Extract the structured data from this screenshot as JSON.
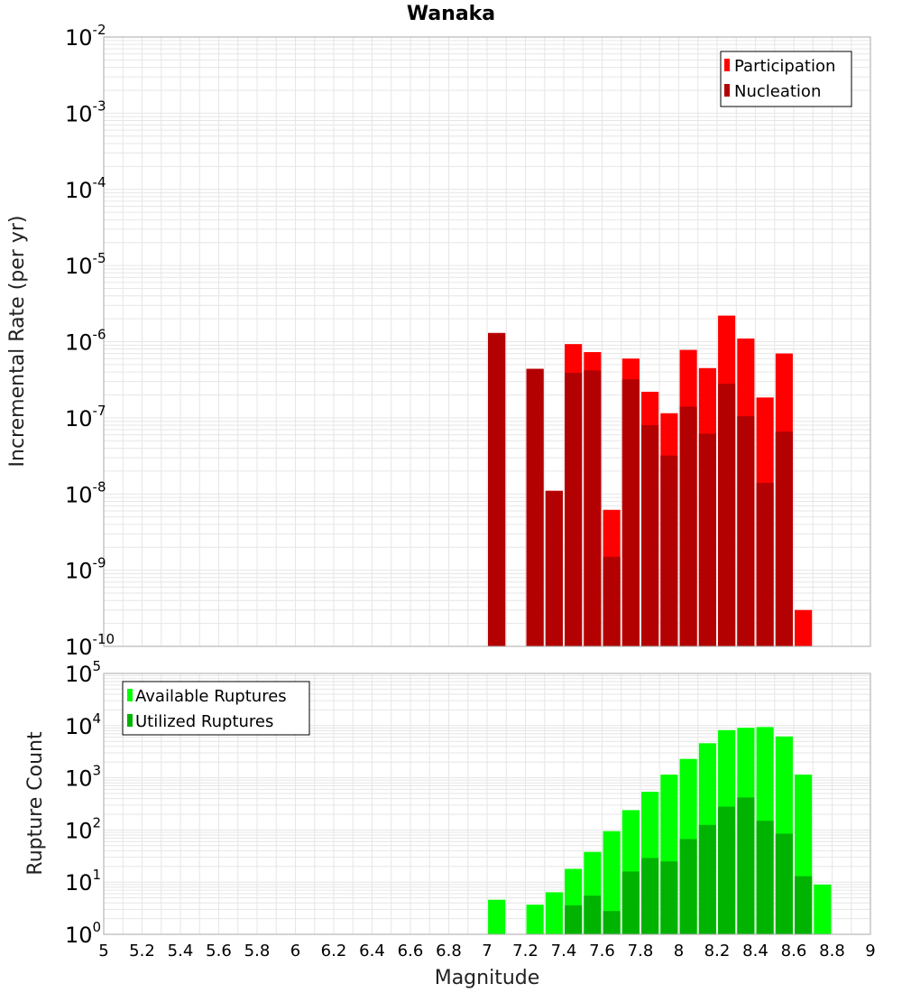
{
  "chart_data": [
    {
      "type": "bar",
      "title": "Wanaka",
      "xlabel": "Magnitude",
      "ylabel": "Incremental Rate (per yr)",
      "xlim": [
        5,
        9
      ],
      "ylim": [
        1e-10,
        0.01
      ],
      "yscale": "log",
      "grid": true,
      "legend_position": "top-right",
      "x": [
        7.05,
        7.15,
        7.25,
        7.35,
        7.45,
        7.55,
        7.65,
        7.75,
        7.85,
        7.95,
        8.05,
        8.15,
        8.25,
        8.35,
        8.45,
        8.55,
        8.65
      ],
      "series": [
        {
          "name": "Participation",
          "color": "#ff0000",
          "values": [
            1.3e-06,
            null,
            4.4e-07,
            1.1e-08,
            9.3e-07,
            7.3e-07,
            6.2e-09,
            6e-07,
            2.2e-07,
            1.15e-07,
            7.8e-07,
            4.5e-07,
            2.2e-06,
            1.1e-06,
            1.85e-07,
            7e-07,
            3e-10
          ]
        },
        {
          "name": "Nucleation",
          "color": "#b30000",
          "values": [
            1.3e-06,
            null,
            4.4e-07,
            1.1e-08,
            3.9e-07,
            4.2e-07,
            1.5e-09,
            3.2e-07,
            8e-08,
            3.2e-08,
            1.4e-07,
            6.2e-08,
            2.8e-07,
            1.05e-07,
            1.4e-08,
            6.6e-08,
            null
          ]
        }
      ]
    },
    {
      "type": "bar",
      "xlabel": "Magnitude",
      "ylabel": "Rupture Count",
      "xlim": [
        5,
        9
      ],
      "ylim": [
        1,
        100000
      ],
      "yscale": "log",
      "grid": true,
      "legend_position": "top-left",
      "x": [
        7.05,
        7.15,
        7.25,
        7.35,
        7.45,
        7.55,
        7.65,
        7.75,
        7.85,
        7.95,
        8.05,
        8.15,
        8.25,
        8.35,
        8.45,
        8.55,
        8.65,
        8.75
      ],
      "series": [
        {
          "name": "Available Ruptures",
          "color": "#00ff00",
          "values": [
            4.6,
            null,
            3.7,
            6.4,
            18,
            38,
            95,
            240,
            540,
            1150,
            2300,
            4600,
            8200,
            9100,
            9400,
            6200,
            1150,
            9
          ]
        },
        {
          "name": "Utilized Ruptures",
          "color": "#00b300",
          "values": [
            1,
            null,
            1,
            1,
            3.6,
            5.5,
            2.8,
            16,
            29,
            25,
            67,
            125,
            280,
            420,
            150,
            85,
            13,
            null
          ]
        }
      ]
    }
  ],
  "x_ticks": [
    "5",
    "5.2",
    "5.4",
    "5.6",
    "5.8",
    "6",
    "6.2",
    "6.4",
    "6.6",
    "6.8",
    "7",
    "7.2",
    "7.4",
    "7.6",
    "7.8",
    "8",
    "8.2",
    "8.4",
    "8.6",
    "8.8",
    "9"
  ],
  "top_y_ticks": [
    {
      "base": "10",
      "exp": "-2",
      "value": 0.01
    },
    {
      "base": "10",
      "exp": "-3",
      "value": 0.001
    },
    {
      "base": "10",
      "exp": "-4",
      "value": 0.0001
    },
    {
      "base": "10",
      "exp": "-5",
      "value": 1e-05
    },
    {
      "base": "10",
      "exp": "-6",
      "value": 1e-06
    },
    {
      "base": "10",
      "exp": "-7",
      "value": 1e-07
    },
    {
      "base": "10",
      "exp": "-8",
      "value": 1e-08
    },
    {
      "base": "10",
      "exp": "-9",
      "value": 1e-09
    },
    {
      "base": "10",
      "exp": "-10",
      "value": 1e-10
    }
  ],
  "bottom_y_ticks": [
    {
      "base": "10",
      "exp": "5",
      "value": 100000
    },
    {
      "base": "10",
      "exp": "4",
      "value": 10000
    },
    {
      "base": "10",
      "exp": "3",
      "value": 1000
    },
    {
      "base": "10",
      "exp": "2",
      "value": 100
    },
    {
      "base": "10",
      "exp": "1",
      "value": 10
    },
    {
      "base": "10",
      "exp": "0",
      "value": 1
    }
  ],
  "colors": {
    "participation": "#ff0000",
    "nucleation": "#b30000",
    "available": "#00ff00",
    "utilized": "#00b300",
    "plot_border": "#aaaaaa",
    "grid": "#e6e6e6"
  }
}
